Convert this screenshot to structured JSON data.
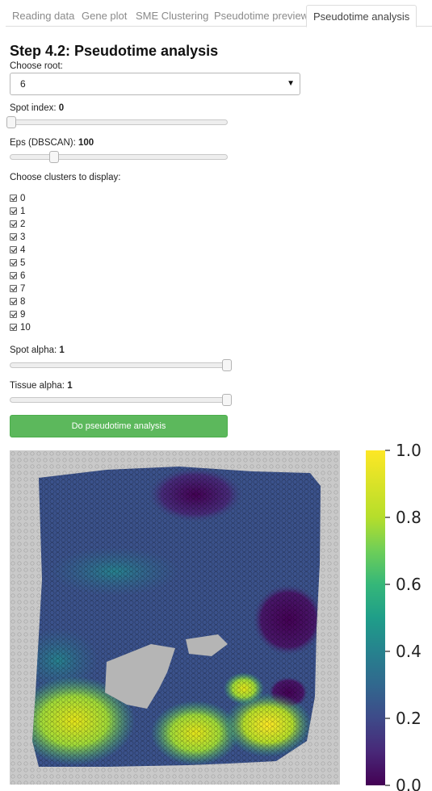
{
  "tabs": [
    {
      "label": "Reading data"
    },
    {
      "label": "Gene plot"
    },
    {
      "label": "SME Clustering"
    },
    {
      "label": "Pseudotime preview"
    },
    {
      "label": "Pseudotime analysis",
      "active": true
    }
  ],
  "page_title": "Step 4.2: Pseudotime analysis",
  "root": {
    "label": "Choose root:",
    "value": "6"
  },
  "spot_index": {
    "label": "Spot index:",
    "value": "0",
    "fraction": 0.0
  },
  "eps": {
    "label": "Eps (DBSCAN):",
    "value": "100",
    "fraction": 0.2
  },
  "clusters": {
    "label": "Choose clusters to display:",
    "items": [
      "0",
      "1",
      "2",
      "3",
      "4",
      "5",
      "6",
      "7",
      "8",
      "9",
      "10"
    ]
  },
  "spot_alpha": {
    "label": "Spot alpha:",
    "value": "1",
    "fraction": 1.0
  },
  "tissue_alpha": {
    "label": "Tissue alpha:",
    "value": "1",
    "fraction": 1.0
  },
  "run_button": {
    "label": "Do pseudotime analysis",
    "color": "#5cb85c"
  },
  "colorbar": {
    "colormap": "viridis",
    "ticks": [
      "1.0",
      "0.8",
      "0.6",
      "0.4",
      "0.2",
      "0.0"
    ]
  }
}
